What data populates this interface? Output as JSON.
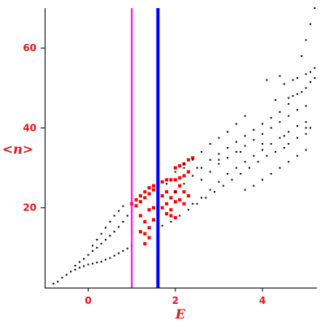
{
  "chart_data": {
    "type": "scatter",
    "title": "",
    "xlabel": "E",
    "ylabel": "<n>",
    "xlim": [
      -1.0,
      5.25
    ],
    "ylim": [
      0,
      70
    ],
    "xticks": [
      "0",
      "2",
      "4"
    ],
    "yticks": [
      "20",
      "40",
      "60"
    ],
    "grid": false,
    "legend": "none",
    "vertical_lines": [
      {
        "x": 1.0,
        "color": "#ff00ff"
      },
      {
        "x": 1.6,
        "color": "#0000ff"
      }
    ],
    "series": [
      {
        "color": "#000000",
        "marker": "dot",
        "points": [
          [
            -0.8,
            1.0
          ],
          [
            -0.7,
            1.5
          ],
          [
            -0.6,
            2.5
          ],
          [
            -0.5,
            3.2
          ],
          [
            -0.4,
            4.0
          ],
          [
            -0.3,
            4.5
          ],
          [
            -0.2,
            5.0
          ],
          [
            -0.1,
            5.4
          ],
          [
            0.0,
            5.8
          ],
          [
            0.1,
            6.0
          ],
          [
            0.2,
            6.3
          ],
          [
            0.3,
            6.5
          ],
          [
            0.4,
            7.0
          ],
          [
            0.5,
            7.4
          ],
          [
            0.6,
            8.0
          ],
          [
            0.7,
            8.6
          ],
          [
            0.8,
            9.2
          ],
          [
            0.9,
            9.8
          ],
          [
            1.0,
            10.5
          ],
          [
            -0.3,
            5.5
          ],
          [
            -0.2,
            6.4
          ],
          [
            -0.1,
            7.2
          ],
          [
            0.0,
            8.2
          ],
          [
            0.1,
            9.2
          ],
          [
            0.2,
            10.0
          ],
          [
            0.3,
            11.0
          ],
          [
            0.4,
            12.0
          ],
          [
            0.5,
            13.0
          ],
          [
            0.6,
            14.0
          ],
          [
            0.7,
            15.2
          ],
          [
            0.8,
            16.5
          ],
          [
            0.9,
            18.0
          ],
          [
            1.0,
            19.0
          ],
          [
            0.1,
            10.5
          ],
          [
            0.2,
            12.0
          ],
          [
            0.3,
            13.5
          ],
          [
            0.4,
            15.0
          ],
          [
            0.5,
            16.5
          ],
          [
            0.6,
            18.0
          ],
          [
            0.7,
            19.2
          ],
          [
            0.8,
            20.4
          ],
          [
            1.7,
            15.5
          ],
          [
            1.9,
            16.5
          ],
          [
            2.1,
            18.0
          ],
          [
            2.3,
            19.5
          ],
          [
            2.5,
            21.0
          ],
          [
            2.7,
            22.5
          ],
          [
            2.9,
            24.0
          ],
          [
            3.1,
            25.5
          ],
          [
            3.3,
            27.0
          ],
          [
            3.5,
            28.5
          ],
          [
            3.7,
            30.0
          ],
          [
            3.9,
            31.5
          ],
          [
            4.1,
            33.0
          ],
          [
            4.3,
            34.0
          ],
          [
            4.5,
            35.0
          ],
          [
            2.0,
            24.0
          ],
          [
            2.2,
            26.0
          ],
          [
            2.4,
            28.0
          ],
          [
            2.6,
            30.0
          ],
          [
            2.8,
            32.0
          ],
          [
            3.0,
            33.5
          ],
          [
            3.2,
            35.0
          ],
          [
            3.4,
            36.5
          ],
          [
            3.6,
            38.0
          ],
          [
            3.8,
            39.5
          ],
          [
            4.0,
            41.0
          ],
          [
            4.2,
            42.5
          ],
          [
            4.4,
            44.0
          ],
          [
            4.6,
            46.0
          ],
          [
            2.2,
            30.0
          ],
          [
            2.4,
            32.0
          ],
          [
            2.6,
            34.0
          ],
          [
            2.8,
            36.0
          ],
          [
            3.0,
            37.5
          ],
          [
            3.2,
            39.0
          ],
          [
            3.4,
            41.0
          ],
          [
            3.6,
            43.0
          ],
          [
            1.6,
            23.0
          ],
          [
            1.8,
            26.0
          ],
          [
            2.0,
            29.0
          ],
          [
            2.2,
            31.0
          ],
          [
            2.4,
            21.0
          ],
          [
            2.6,
            22.5
          ],
          [
            2.8,
            24.5
          ],
          [
            3.0,
            26.5
          ],
          [
            3.2,
            28.5
          ],
          [
            3.4,
            30.0
          ],
          [
            3.6,
            31.5
          ],
          [
            3.8,
            33.0
          ],
          [
            4.0,
            34.5
          ],
          [
            4.2,
            36.0
          ],
          [
            4.4,
            37.5
          ],
          [
            4.6,
            39.0
          ],
          [
            4.8,
            40.5
          ],
          [
            5.0,
            41.5
          ],
          [
            2.6,
            27.0
          ],
          [
            2.8,
            29.0
          ],
          [
            3.0,
            31.0
          ],
          [
            3.2,
            32.5
          ],
          [
            3.4,
            34.0
          ],
          [
            3.6,
            35.5
          ],
          [
            3.8,
            37.0
          ],
          [
            4.0,
            38.5
          ],
          [
            4.2,
            40.0
          ],
          [
            4.4,
            41.5
          ],
          [
            4.6,
            43.0
          ],
          [
            4.8,
            44.5
          ],
          [
            5.0,
            45.5
          ],
          [
            3.6,
            24.5
          ],
          [
            3.8,
            25.5
          ],
          [
            4.0,
            27.0
          ],
          [
            4.2,
            28.5
          ],
          [
            4.4,
            30.0
          ],
          [
            4.6,
            31.5
          ],
          [
            4.8,
            33.0
          ],
          [
            5.0,
            34.5
          ],
          [
            2.5,
            30.0
          ],
          [
            3.0,
            32.0
          ],
          [
            3.5,
            34.0
          ],
          [
            4.0,
            36.0
          ],
          [
            4.5,
            38.0
          ],
          [
            5.0,
            40.0
          ],
          [
            4.6,
            36.0
          ],
          [
            4.8,
            37.5
          ],
          [
            5.0,
            38.5
          ],
          [
            5.1,
            40.0
          ],
          [
            4.6,
            47.5
          ],
          [
            4.7,
            48.0
          ],
          [
            4.8,
            48.5
          ],
          [
            4.9,
            49.0
          ],
          [
            5.0,
            50.0
          ],
          [
            5.1,
            51.5
          ],
          [
            5.2,
            52.5
          ],
          [
            4.5,
            51.0
          ],
          [
            4.7,
            52.0
          ],
          [
            4.8,
            52.5
          ],
          [
            5.0,
            53.5
          ],
          [
            5.1,
            54.0
          ],
          [
            5.2,
            55.0
          ],
          [
            4.4,
            53.0
          ],
          [
            4.9,
            58.0
          ],
          [
            5.0,
            62.0
          ],
          [
            5.1,
            66.0
          ],
          [
            5.2,
            70.0
          ],
          [
            4.3,
            47.0
          ],
          [
            4.1,
            52.0
          ]
        ]
      },
      {
        "color": "#ff0000",
        "marker": "square",
        "points": [
          [
            1.0,
            21.0
          ],
          [
            1.1,
            22.0
          ],
          [
            1.2,
            23.0
          ],
          [
            1.3,
            24.0
          ],
          [
            1.4,
            25.0
          ],
          [
            1.5,
            25.5
          ],
          [
            1.6,
            26.0
          ],
          [
            1.1,
            20.5
          ],
          [
            1.2,
            21.5
          ],
          [
            1.3,
            22.5
          ],
          [
            1.4,
            23.5
          ],
          [
            1.5,
            24.5
          ],
          [
            1.6,
            25.0
          ],
          [
            1.7,
            26.5
          ],
          [
            1.8,
            27.0
          ],
          [
            1.9,
            27.0
          ],
          [
            2.0,
            27.0
          ],
          [
            2.1,
            27.5
          ],
          [
            2.2,
            28.0
          ],
          [
            2.3,
            29.0
          ],
          [
            2.0,
            30.0
          ],
          [
            2.1,
            30.5
          ],
          [
            2.2,
            31.0
          ],
          [
            2.3,
            32.0
          ],
          [
            2.4,
            32.5
          ],
          [
            1.7,
            23.0
          ],
          [
            1.8,
            24.0
          ],
          [
            1.9,
            22.5
          ],
          [
            2.0,
            24.0
          ],
          [
            2.1,
            25.5
          ],
          [
            2.2,
            24.0
          ],
          [
            2.3,
            23.0
          ],
          [
            1.7,
            20.0
          ],
          [
            1.8,
            21.0
          ],
          [
            1.9,
            19.5
          ],
          [
            2.0,
            21.5
          ],
          [
            2.1,
            22.0
          ],
          [
            2.2,
            21.0
          ],
          [
            1.8,
            18.5
          ],
          [
            1.9,
            18.0
          ],
          [
            2.0,
            17.5
          ],
          [
            1.2,
            18.0
          ],
          [
            1.3,
            16.5
          ],
          [
            1.4,
            15.0
          ],
          [
            1.2,
            14.0
          ],
          [
            1.3,
            13.5
          ],
          [
            1.4,
            12.5
          ],
          [
            1.3,
            11.0
          ],
          [
            1.4,
            19.5
          ],
          [
            1.5,
            17.0
          ],
          [
            1.5,
            20.0
          ]
        ]
      }
    ]
  }
}
